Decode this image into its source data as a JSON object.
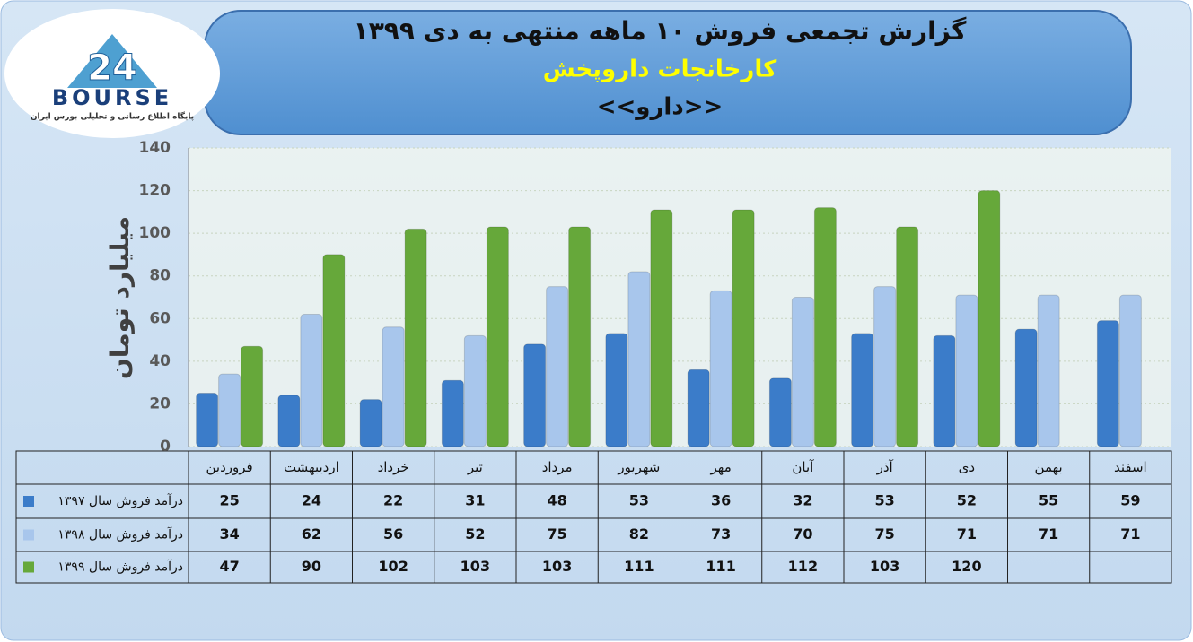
{
  "logo": {
    "mark": "24",
    "name": "BOURSE",
    "tagline": "پایگاه اطلاع رسانی و تحلیلی بورس ایران"
  },
  "chart_data": {
    "type": "bar",
    "title": "گزارش تجمعی فروش ۱۰ ماهه منتهی به دی ۱۳۹۹",
    "subtitle": "کارخانجات داروپخش",
    "caption": "<<دارو>>",
    "y_label": "میلیارد تومان",
    "categories": [
      "فروردین",
      "اردیبهشت",
      "خرداد",
      "تیر",
      "مرداد",
      "شهریور",
      "مهر",
      "آبان",
      "آذر",
      "دی",
      "بهمن",
      "اسفند"
    ],
    "series": [
      {
        "name": "درآمد فروش سال ۱۳۹۷",
        "color": "#3b7cc9",
        "values": [
          25,
          24,
          22,
          31,
          48,
          53,
          36,
          32,
          53,
          52,
          55,
          59
        ]
      },
      {
        "name": "درآمد فروش سال ۱۳۹۸",
        "color": "#a8c6ec",
        "values": [
          34,
          62,
          56,
          52,
          75,
          82,
          73,
          70,
          75,
          71,
          71,
          71
        ]
      },
      {
        "name": "درآمد فروش سال ۱۳۹۹",
        "color": "#66a83a",
        "values": [
          47,
          90,
          102,
          103,
          103,
          111,
          111,
          112,
          103,
          120,
          null,
          null
        ]
      }
    ],
    "ylim": [
      0,
      140
    ],
    "yticks": [
      0,
      20,
      40,
      60,
      80,
      100,
      120,
      140
    ],
    "grid": true
  }
}
